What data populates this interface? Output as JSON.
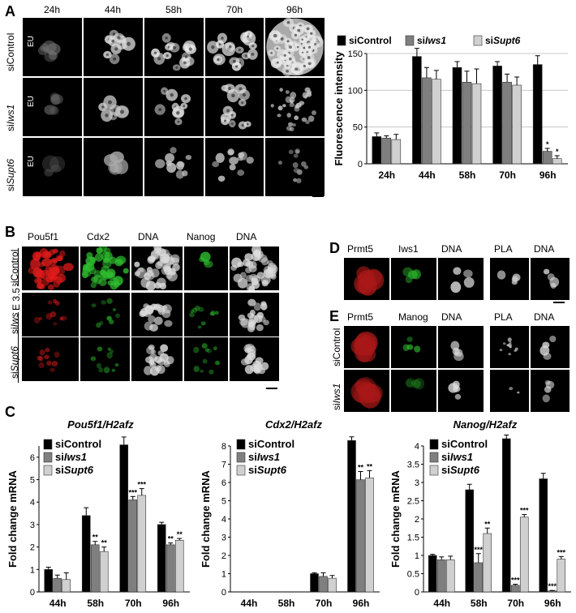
{
  "panels": {
    "A": {
      "label": "A",
      "timepoints": [
        "24h",
        "44h",
        "58h",
        "70h",
        "96h"
      ],
      "rows": [
        {
          "name": "siControl",
          "prefix": "si",
          "italic": "",
          "rest": "Control",
          "stain": "EU"
        },
        {
          "name": "siIws1",
          "prefix": "si",
          "italic": "Iws1",
          "rest": "",
          "stain": "EU"
        },
        {
          "name": "siSupt6",
          "prefix": "si",
          "italic": "Supt6",
          "rest": "",
          "stain": "EU"
        }
      ]
    },
    "B": {
      "label": "B",
      "columns": [
        "Pou5f1",
        "Cdx2",
        "DNA",
        "Nanog",
        "DNA"
      ],
      "stage": "E 3.5",
      "rows": [
        {
          "prefix": "si",
          "italic": "",
          "rest": "Control"
        },
        {
          "prefix": "si",
          "italic": "Iws1",
          "rest": ""
        },
        {
          "prefix": "si",
          "italic": "Supt6",
          "rest": ""
        }
      ]
    },
    "D": {
      "label": "D",
      "columns": [
        "Prmt5",
        "Iws1",
        "DNA",
        "PLA",
        "DNA"
      ]
    },
    "E": {
      "label": "E",
      "columns": [
        "Prmt5",
        "Manog",
        "DNA",
        "PLA",
        "DNA"
      ],
      "rows": [
        {
          "prefix": "si",
          "italic": "",
          "rest": "Control"
        },
        {
          "prefix": "si",
          "italic": "Iws1",
          "rest": ""
        }
      ]
    },
    "C": {
      "label": "C"
    }
  },
  "legend": {
    "series": [
      {
        "prefix": "si",
        "italic": "",
        "rest": "Control"
      },
      {
        "prefix": "si",
        "italic": "Iws1",
        "rest": ""
      },
      {
        "prefix": "si",
        "italic": "Supt6",
        "rest": ""
      }
    ]
  },
  "colors": {
    "siControl": "#000000",
    "siIws1": "#7f7f7f",
    "siSupt6": "#d0d0d0"
  },
  "chart_data": [
    {
      "id": "A-bar",
      "type": "bar",
      "title": "",
      "ylabel": "Fluorescence intensity",
      "xlabel": "",
      "categories": [
        "24h",
        "44h",
        "58h",
        "70h",
        "96h"
      ],
      "ylim": [
        0,
        150
      ],
      "yticks": [
        0,
        50,
        100,
        150
      ],
      "grid": true,
      "legend": "top",
      "series": [
        {
          "name": "siControl",
          "values": [
            37,
            146,
            131,
            133,
            135
          ],
          "errors": [
            5,
            11,
            8,
            6,
            12
          ],
          "stars": [
            "",
            "",
            "",
            "",
            ""
          ]
        },
        {
          "name": "siIws1",
          "values": [
            35,
            117,
            111,
            111,
            17
          ],
          "errors": [
            3,
            14,
            15,
            11,
            4
          ],
          "stars": [
            "",
            "",
            "",
            "",
            "*"
          ]
        },
        {
          "name": "siSupt6",
          "values": [
            33,
            115,
            109,
            107,
            7
          ],
          "errors": [
            7,
            12,
            20,
            11,
            4
          ],
          "stars": [
            "",
            "",
            "",
            "",
            "*"
          ]
        }
      ]
    },
    {
      "id": "C1",
      "type": "bar",
      "title": "Pou5f1/H2afz",
      "ylabel": "Fold change mRNA",
      "categories": [
        "44h",
        "58h",
        "70h",
        "96h"
      ],
      "ylim": [
        0,
        6.5
      ],
      "yticks": [
        0,
        1,
        2,
        3,
        4,
        5,
        6
      ],
      "legend": "top-left",
      "series": [
        {
          "name": "siControl",
          "values": [
            1.0,
            3.4,
            6.55,
            3.0
          ],
          "errors": [
            0.1,
            0.35,
            0.35,
            0.1
          ],
          "stars": [
            "",
            "",
            "",
            ""
          ]
        },
        {
          "name": "siIws1",
          "values": [
            0.6,
            2.1,
            4.1,
            2.1
          ],
          "errors": [
            0.15,
            0.15,
            0.15,
            0.08
          ],
          "stars": [
            "",
            "**",
            "***",
            "**"
          ]
        },
        {
          "name": "siSupt6",
          "values": [
            0.55,
            1.8,
            4.3,
            2.3
          ],
          "errors": [
            0.3,
            0.2,
            0.3,
            0.08
          ],
          "stars": [
            "",
            "**",
            "***",
            "**"
          ]
        }
      ]
    },
    {
      "id": "C2",
      "type": "bar",
      "title": "Cdx2/H2afz",
      "ylabel": "Fold change mRNA",
      "categories": [
        "44h",
        "58h",
        "70h",
        "96h"
      ],
      "ylim": [
        0,
        8
      ],
      "yticks": [
        0,
        1,
        2,
        3,
        4,
        5,
        6,
        7,
        8
      ],
      "legend": "top-left",
      "series": [
        {
          "name": "siControl",
          "values": [
            0,
            0,
            1.0,
            8.3
          ],
          "errors": [
            0,
            0,
            0.05,
            0.2
          ],
          "stars": [
            "",
            "",
            "",
            ""
          ]
        },
        {
          "name": "siIws1",
          "values": [
            0,
            0,
            0.85,
            6.15
          ],
          "errors": [
            0,
            0,
            0.2,
            0.45
          ],
          "stars": [
            "",
            "",
            "",
            "**"
          ]
        },
        {
          "name": "siSupt6",
          "values": [
            0,
            0,
            0.75,
            6.25
          ],
          "errors": [
            0,
            0,
            0.15,
            0.4
          ],
          "stars": [
            "",
            "",
            "",
            "**"
          ]
        }
      ]
    },
    {
      "id": "C3",
      "type": "bar",
      "title": "Nanog/H2afz",
      "ylabel": "Fold change mRNA",
      "categories": [
        "44h",
        "58h",
        "70h",
        "96h"
      ],
      "ylim": [
        0,
        4
      ],
      "yticks": [
        0,
        0.5,
        1,
        1.5,
        2,
        2.5,
        3,
        3.5,
        4
      ],
      "legend": "top-left",
      "series": [
        {
          "name": "siControl",
          "values": [
            1.0,
            2.8,
            4.2,
            3.1
          ],
          "errors": [
            0.03,
            0.15,
            0.1,
            0.15
          ],
          "stars": [
            "",
            "",
            "",
            ""
          ]
        },
        {
          "name": "siIws1",
          "values": [
            0.88,
            0.8,
            0.18,
            0.03
          ],
          "errors": [
            0.08,
            0.25,
            0.03,
            0.01
          ],
          "stars": [
            "",
            "***",
            "***",
            "***"
          ]
        },
        {
          "name": "siSupt6",
          "values": [
            0.88,
            1.6,
            2.05,
            0.9
          ],
          "errors": [
            0.1,
            0.15,
            0.07,
            0.07
          ],
          "stars": [
            "",
            "**",
            "***",
            "***"
          ]
        }
      ]
    }
  ]
}
